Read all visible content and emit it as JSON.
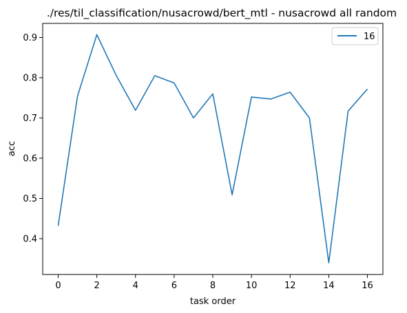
{
  "chart_data": {
    "type": "line",
    "title": "./res/til_classification/nusacrowd/bert_mtl - nusacrowd all random",
    "xlabel": "task order",
    "ylabel": "acc",
    "x": [
      0,
      1,
      2,
      3,
      4,
      5,
      6,
      7,
      8,
      9,
      10,
      11,
      12,
      13,
      14,
      15,
      16
    ],
    "series": [
      {
        "name": "16",
        "color": "#1f77b4",
        "values": [
          0.432,
          0.754,
          0.907,
          0.806,
          0.719,
          0.805,
          0.787,
          0.7,
          0.76,
          0.509,
          0.752,
          0.747,
          0.764,
          0.7,
          0.34,
          0.717,
          0.772
        ]
      }
    ],
    "xlim": [
      -0.8,
      16.8
    ],
    "ylim": [
      0.311,
      0.935
    ],
    "xticks": [
      0,
      2,
      4,
      6,
      8,
      10,
      12,
      14,
      16
    ],
    "yticks": [
      0.4,
      0.5,
      0.6,
      0.7,
      0.8,
      0.9
    ],
    "grid": false,
    "legend_position": "top-right"
  }
}
